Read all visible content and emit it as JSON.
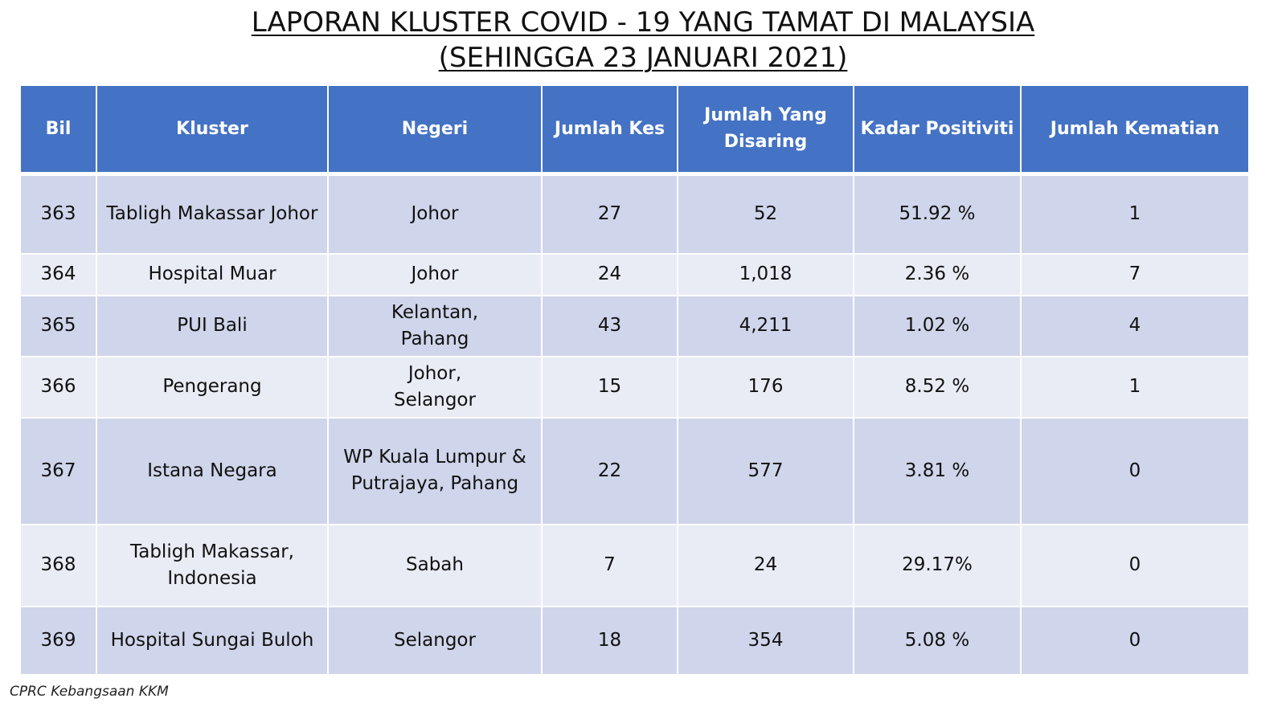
{
  "title": {
    "line1": "LAPORAN KLUSTER COVID - 19 YANG TAMAT DI MALAYSIA",
    "line2": "(SEHINGGA 23 JANUARI 2021)"
  },
  "table": {
    "headers": [
      "Bil",
      "Kluster",
      "Negeri",
      "Jumlah Kes",
      "Jumlah Yang Disaring",
      "Kadar Positiviti",
      "Jumlah Kematian"
    ],
    "rows": [
      {
        "bil": "363",
        "kluster": "Tabligh Makassar Johor",
        "negeri": "Johor",
        "kes": "27",
        "disaring": "52",
        "positiviti": "51.92 %",
        "kematian": "1"
      },
      {
        "bil": "364",
        "kluster": "Hospital Muar",
        "negeri": "Johor",
        "kes": "24",
        "disaring": "1,018",
        "positiviti": "2.36 %",
        "kematian": "7"
      },
      {
        "bil": "365",
        "kluster": "PUI Bali",
        "negeri": "Kelantan, Pahang",
        "kes": "43",
        "disaring": "4,211",
        "positiviti": "1.02 %",
        "kematian": "4"
      },
      {
        "bil": "366",
        "kluster": "Pengerang",
        "negeri": "Johor, Selangor",
        "kes": "15",
        "disaring": "176",
        "positiviti": "8.52 %",
        "kematian": "1"
      },
      {
        "bil": "367",
        "kluster": "Istana Negara",
        "negeri": "WP Kuala Lumpur & Putrajaya, Pahang",
        "kes": "22",
        "disaring": "577",
        "positiviti": "3.81 %",
        "kematian": "0"
      },
      {
        "bil": "368",
        "kluster": "Tabligh Makassar, Indonesia",
        "negeri": "Sabah",
        "kes": "7",
        "disaring": "24",
        "positiviti": "29.17%",
        "kematian": "0"
      },
      {
        "bil": "369",
        "kluster": "Hospital Sungai Buloh",
        "negeri": "Selangor",
        "kes": "18",
        "disaring": "354",
        "positiviti": "5.08 %",
        "kematian": "0"
      }
    ]
  },
  "footer": {
    "source": "CPRC Kebangsaan KKM"
  },
  "colors": {
    "header_bg": "#4472c4",
    "row_dark": "#cfd5ea",
    "row_light": "#e9ebf5"
  }
}
